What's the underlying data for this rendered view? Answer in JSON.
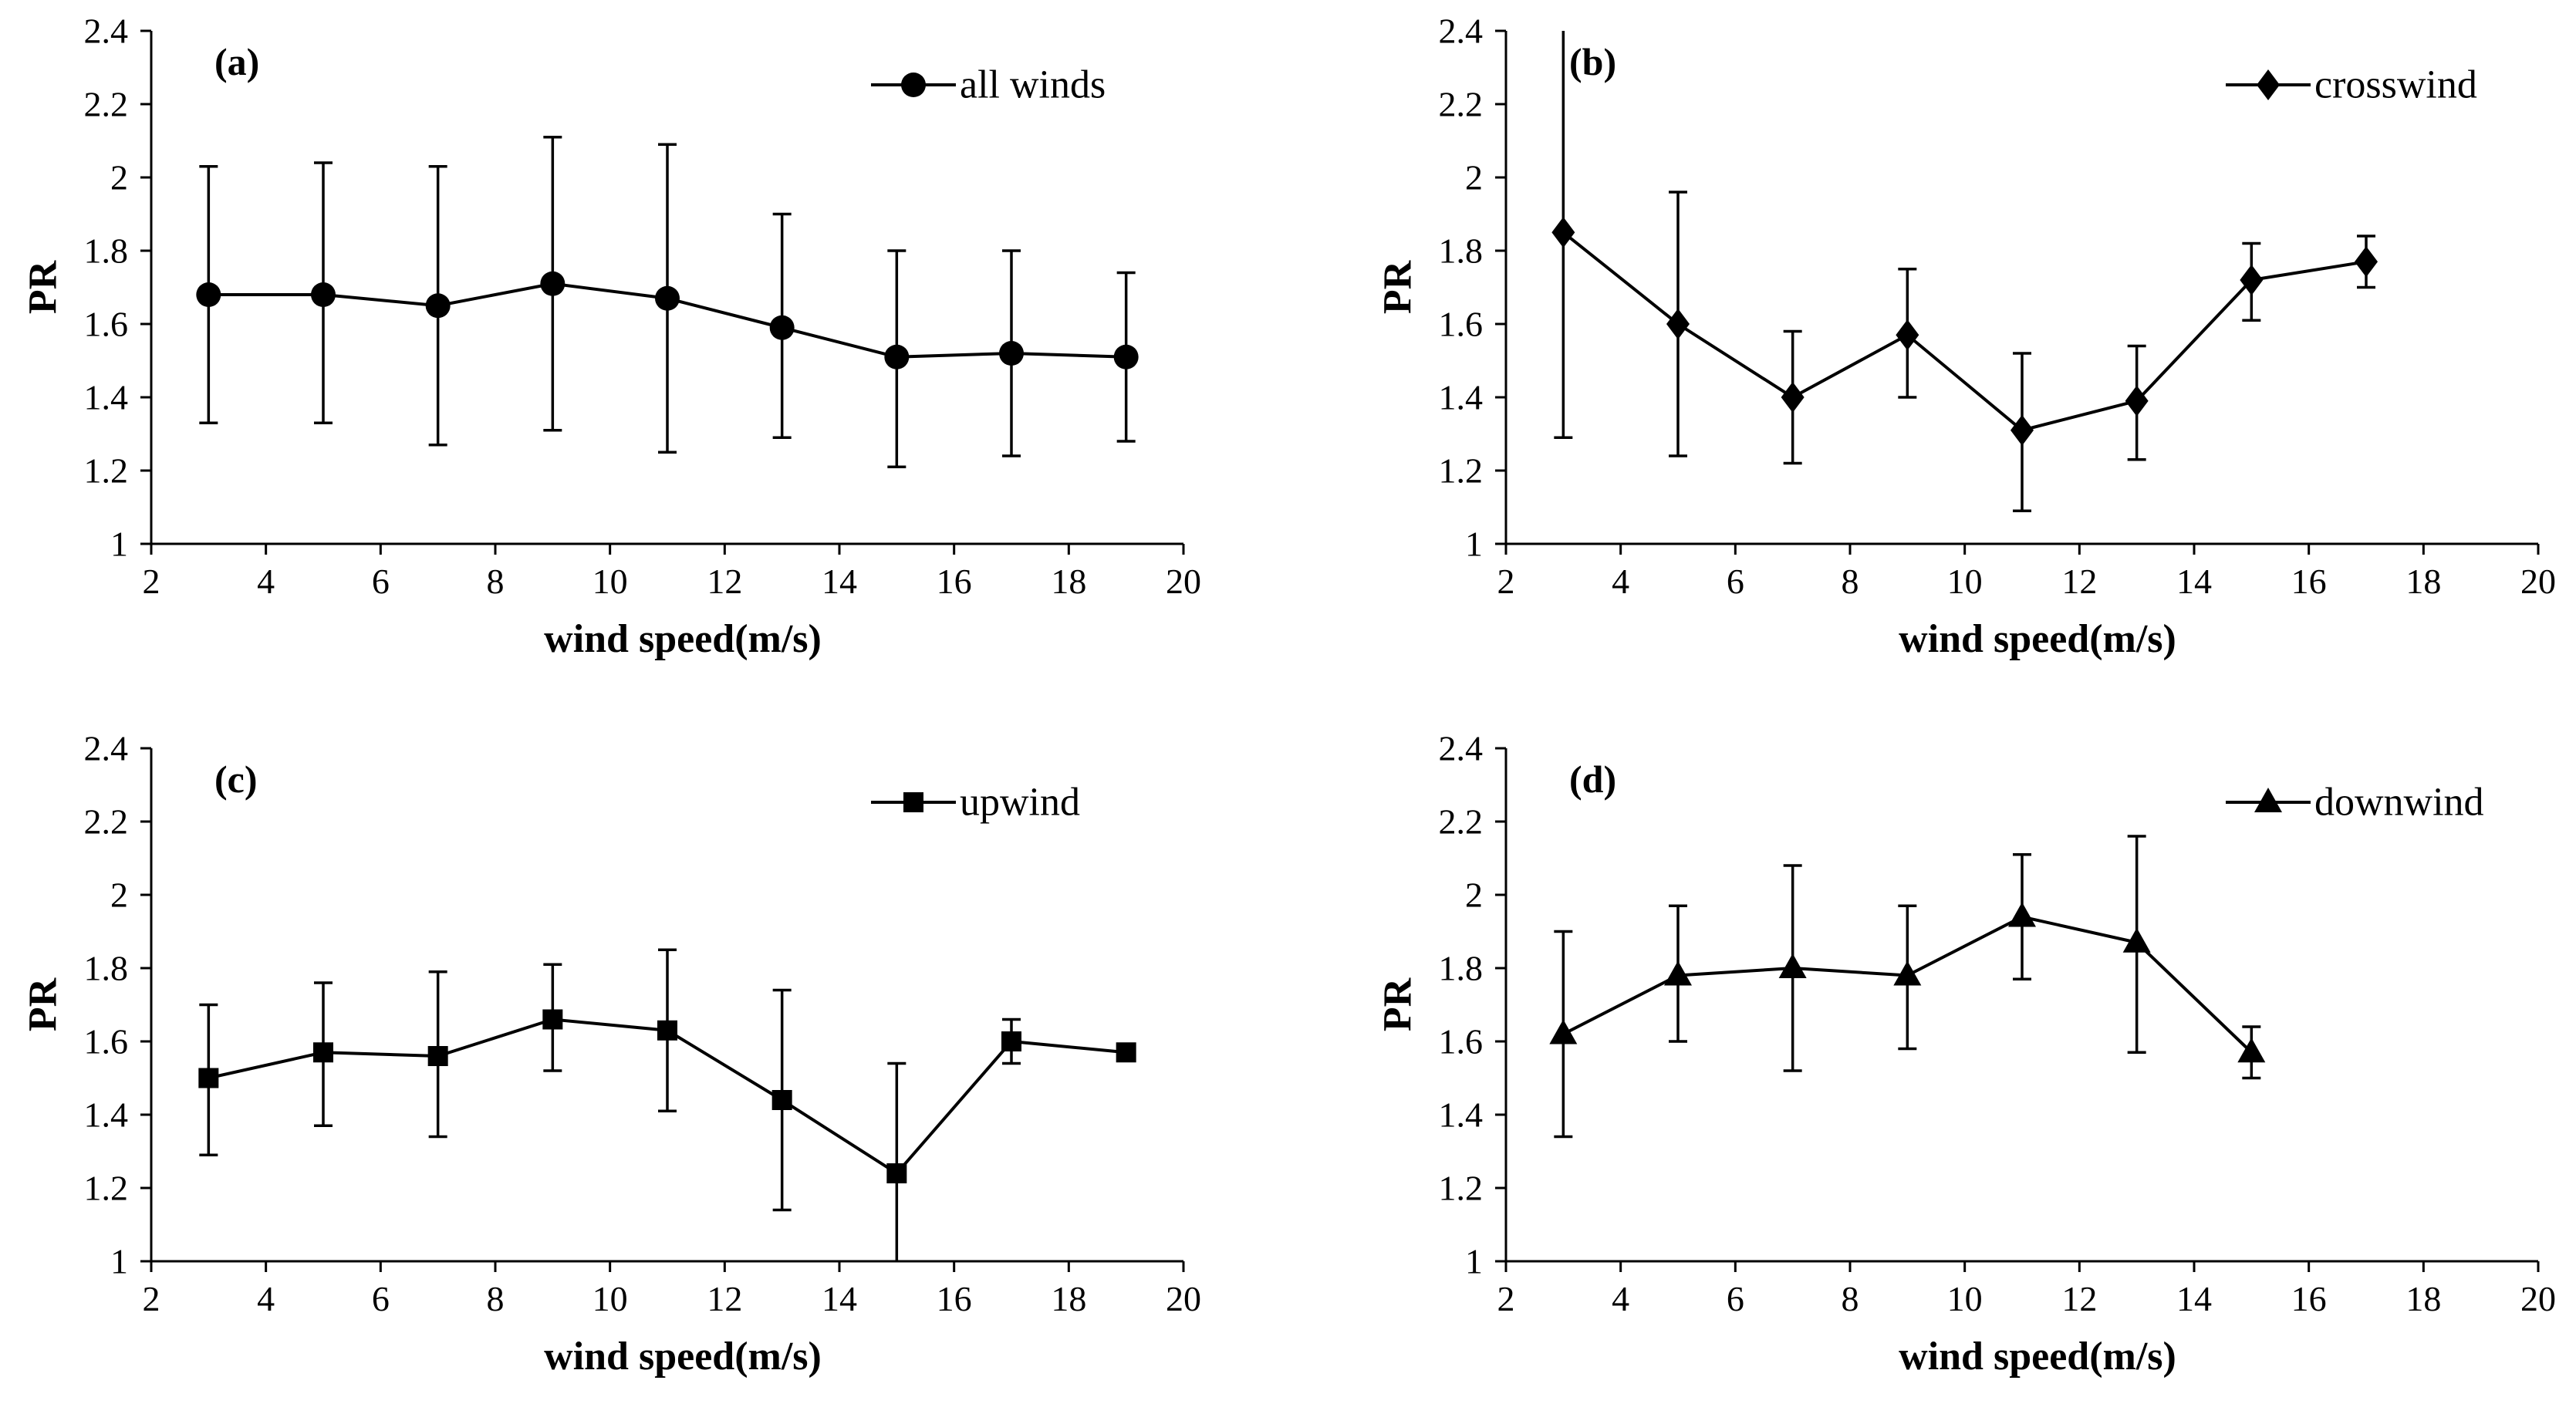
{
  "chart_data": [
    {
      "type": "line",
      "panel_label": "(a)",
      "xlabel": "wind speed(m/s)",
      "ylabel": "PR",
      "xlim": [
        2,
        20
      ],
      "ylim": [
        1,
        2.4
      ],
      "xticks": [
        "2",
        "4",
        "6",
        "8",
        "10",
        "12",
        "14",
        "16",
        "18",
        "20"
      ],
      "yticks": [
        "1",
        "1.2",
        "1.4",
        "1.6",
        "1.8",
        "2",
        "2.2",
        "2.4"
      ],
      "grid": false,
      "legend_position": "top-right",
      "series": [
        {
          "name": "all winds",
          "marker": "circle",
          "color": "#000000",
          "x": [
            3,
            5,
            7,
            9,
            11,
            13,
            15,
            17,
            19
          ],
          "y": [
            1.68,
            1.68,
            1.65,
            1.71,
            1.67,
            1.59,
            1.51,
            1.52,
            1.51
          ],
          "err_low": [
            1.33,
            1.33,
            1.27,
            1.31,
            1.25,
            1.29,
            1.21,
            1.24,
            1.28
          ],
          "err_high": [
            2.03,
            2.04,
            2.03,
            2.11,
            2.09,
            1.9,
            1.8,
            1.8,
            1.74
          ]
        }
      ]
    },
    {
      "type": "line",
      "panel_label": "(b)",
      "xlabel": "wind speed(m/s)",
      "ylabel": "PR",
      "xlim": [
        2,
        20
      ],
      "ylim": [
        1,
        2.4
      ],
      "xticks": [
        "2",
        "4",
        "6",
        "8",
        "10",
        "12",
        "14",
        "16",
        "18",
        "20"
      ],
      "yticks": [
        "1",
        "1.2",
        "1.4",
        "1.6",
        "1.8",
        "2",
        "2.2",
        "2.4"
      ],
      "grid": false,
      "legend_position": "top-right",
      "series": [
        {
          "name": "crosswind",
          "marker": "diamond",
          "color": "#000000",
          "x": [
            3,
            5,
            7,
            9,
            11,
            13,
            15,
            17
          ],
          "y": [
            1.85,
            1.6,
            1.4,
            1.57,
            1.31,
            1.39,
            1.72,
            1.77
          ],
          "err_low": [
            1.29,
            1.24,
            1.22,
            1.4,
            1.09,
            1.23,
            1.61,
            1.7
          ],
          "err_high": [
            2.4,
            1.96,
            1.58,
            1.75,
            1.52,
            1.54,
            1.82,
            1.84
          ]
        }
      ]
    },
    {
      "type": "line",
      "panel_label": "(c)",
      "xlabel": "wind speed(m/s)",
      "ylabel": "PR",
      "xlim": [
        2,
        20
      ],
      "ylim": [
        1,
        2.4
      ],
      "xticks": [
        "2",
        "4",
        "6",
        "8",
        "10",
        "12",
        "14",
        "16",
        "18",
        "20"
      ],
      "yticks": [
        "1",
        "1.2",
        "1.4",
        "1.6",
        "1.8",
        "2",
        "2.2",
        "2.4"
      ],
      "grid": false,
      "legend_position": "top-right",
      "series": [
        {
          "name": "upwind",
          "marker": "square",
          "color": "#000000",
          "x": [
            3,
            5,
            7,
            9,
            11,
            13,
            15,
            17,
            19
          ],
          "y": [
            1.5,
            1.57,
            1.56,
            1.66,
            1.63,
            1.44,
            1.24,
            1.6,
            1.57
          ],
          "err_low": [
            1.29,
            1.37,
            1.34,
            1.52,
            1.41,
            1.14,
            1.0,
            1.54,
            null
          ],
          "err_high": [
            1.7,
            1.76,
            1.79,
            1.81,
            1.85,
            1.74,
            1.54,
            1.66,
            null
          ]
        }
      ]
    },
    {
      "type": "line",
      "panel_label": "(d)",
      "xlabel": "wind speed(m/s)",
      "ylabel": "PR",
      "xlim": [
        2,
        20
      ],
      "ylim": [
        1,
        2.4
      ],
      "xticks": [
        "2",
        "4",
        "6",
        "8",
        "10",
        "12",
        "14",
        "16",
        "18",
        "20"
      ],
      "yticks": [
        "1",
        "1.2",
        "1.4",
        "1.6",
        "1.8",
        "2",
        "2.2",
        "2.4"
      ],
      "grid": false,
      "legend_position": "top-right",
      "series": [
        {
          "name": "downwind",
          "marker": "triangle",
          "color": "#000000",
          "x": [
            3,
            5,
            7,
            9,
            11,
            13,
            15
          ],
          "y": [
            1.62,
            1.78,
            1.8,
            1.78,
            1.94,
            1.87,
            1.57
          ],
          "err_low": [
            1.34,
            1.6,
            1.52,
            1.58,
            1.77,
            1.57,
            1.5
          ],
          "err_high": [
            1.9,
            1.97,
            2.08,
            1.97,
            2.11,
            2.16,
            1.64
          ]
        }
      ]
    }
  ]
}
